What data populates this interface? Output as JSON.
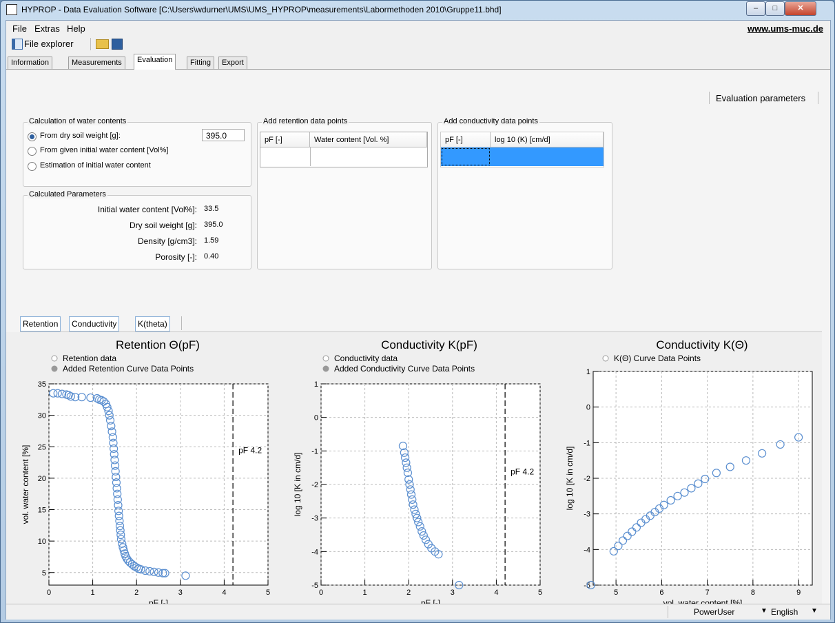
{
  "window": {
    "title": "HYPROP - Data Evaluation Software [C:\\Users\\wdurner\\UMS\\UMS_HYPROP\\measurements\\Labormethoden 2010\\Gruppe11.bhd]"
  },
  "menu": {
    "items": [
      "File",
      "Extras",
      "Help"
    ],
    "website": "www.ums-muc.de"
  },
  "toolbar": {
    "file_explorer": "File explorer"
  },
  "tabs": [
    "Information",
    "Measurements",
    "Evaluation",
    "Fitting",
    "Export"
  ],
  "active_tab": "Evaluation",
  "evaluation_parameters_label": "Evaluation  parameters",
  "water_contents": {
    "title": "Calculation of water contents",
    "options": [
      "From dry soil weight [g]:",
      "From given initial water content [Vol%]",
      "Estimation of initial water content"
    ],
    "selected": "From dry soil weight [g]:",
    "dry_weight_value": "395.0"
  },
  "calculated": {
    "title": "Calculated Parameters",
    "rows": [
      {
        "label": "Initial water content [Vol%]:",
        "value": "33.5"
      },
      {
        "label": "Dry soil weight [g]:",
        "value": "395.0"
      },
      {
        "label": "Density [g/cm3]:",
        "value": "1.59"
      },
      {
        "label": "Porosity [-]:",
        "value": "0.40"
      }
    ]
  },
  "retention_points": {
    "title": "Add retention data points",
    "col1": "pF [-]",
    "col2": "Water content [Vol. %]"
  },
  "conductivity_points": {
    "title": "Add conductivity data points",
    "col1": "pF [-]",
    "col2": "log 10 (K) [cm/d]"
  },
  "subtabs": [
    "Retention",
    "Conductivity",
    "K(theta)"
  ],
  "status": {
    "user": "PowerUser",
    "language": "English"
  },
  "colors": {
    "marker": "#5b8fd0",
    "selected_row": "#3399ff"
  },
  "chart_data": [
    {
      "type": "scatter",
      "title": "Retention Θ(pF)",
      "xlabel": "pF [-]",
      "ylabel": "vol. water content [%]",
      "xlim": [
        0,
        5
      ],
      "ylim": [
        3,
        35
      ],
      "xticks": [
        0,
        1,
        2,
        3,
        4,
        5
      ],
      "yticks": [
        5,
        10,
        15,
        20,
        25,
        30,
        35
      ],
      "legend": [
        "Retention data",
        "Added Retention Curve Data Points"
      ],
      "vline": {
        "x": 4.2,
        "label": "pF 4.2"
      },
      "series": [
        {
          "name": "Retention data",
          "x": [
            0.1,
            0.2,
            0.3,
            0.4,
            0.45,
            0.5,
            0.6,
            0.75,
            0.95,
            1.1,
            1.15,
            1.2,
            1.25,
            1.3,
            1.33,
            1.36,
            1.38,
            1.4,
            1.42,
            1.44,
            1.46,
            1.47,
            1.48,
            1.49,
            1.5,
            1.51,
            1.52,
            1.53,
            1.54,
            1.55,
            1.56,
            1.57,
            1.58,
            1.59,
            1.6,
            1.61,
            1.62,
            1.63,
            1.64,
            1.65,
            1.67,
            1.69,
            1.71,
            1.73,
            1.75,
            1.78,
            1.81,
            1.85,
            1.9,
            1.95,
            2.0,
            2.05,
            2.1,
            2.2,
            2.3,
            2.4,
            2.5,
            2.6,
            2.65,
            3.12
          ],
          "y": [
            33.5,
            33.5,
            33.4,
            33.3,
            33.2,
            33.0,
            32.9,
            32.9,
            32.8,
            32.7,
            32.5,
            32.4,
            32.2,
            31.8,
            31.3,
            30.7,
            30.0,
            29.2,
            28.3,
            27.4,
            26.5,
            25.6,
            24.7,
            23.8,
            22.9,
            22.0,
            21.1,
            20.2,
            19.3,
            18.4,
            17.5,
            16.6,
            15.7,
            14.8,
            14.0,
            13.2,
            12.4,
            11.7,
            11.0,
            10.3,
            9.6,
            9.0,
            8.5,
            8.0,
            7.6,
            7.2,
            6.9,
            6.6,
            6.3,
            6.0,
            5.8,
            5.6,
            5.5,
            5.3,
            5.2,
            5.1,
            5.0,
            4.9,
            4.9,
            4.5
          ]
        }
      ]
    },
    {
      "type": "scatter",
      "title": "Conductivity K(pF)",
      "xlabel": "pF [-]",
      "ylabel": "log 10 [K in cm/d]",
      "xlim": [
        0,
        5
      ],
      "ylim": [
        -5,
        1
      ],
      "xticks": [
        0,
        1,
        2,
        3,
        4,
        5
      ],
      "yticks": [
        -5,
        -4,
        -3,
        -2,
        -1,
        0,
        1
      ],
      "legend": [
        "Conductivity data",
        "Added Conductivity Curve Data Points"
      ],
      "vline": {
        "x": 4.2,
        "label": "pF 4.2"
      },
      "series": [
        {
          "name": "Conductivity data",
          "x": [
            1.87,
            1.9,
            1.92,
            1.94,
            1.96,
            1.98,
            2.0,
            2.02,
            2.04,
            2.06,
            2.08,
            2.1,
            2.13,
            2.16,
            2.19,
            2.22,
            2.26,
            2.3,
            2.34,
            2.39,
            2.45,
            2.52,
            2.6,
            2.68,
            3.15
          ],
          "y": [
            -0.85,
            -1.05,
            -1.2,
            -1.35,
            -1.5,
            -1.65,
            -1.85,
            -2.0,
            -2.15,
            -2.3,
            -2.45,
            -2.6,
            -2.75,
            -2.88,
            -3.0,
            -3.12,
            -3.25,
            -3.4,
            -3.52,
            -3.65,
            -3.78,
            -3.9,
            -4.0,
            -4.08,
            -5.0
          ]
        }
      ]
    },
    {
      "type": "scatter",
      "title": "Conductivity K(Θ)",
      "xlabel": "vol. water content [%]",
      "ylabel": "log 10 [K in cm/d]",
      "xlim": [
        4.5,
        9.3
      ],
      "ylim": [
        -5,
        1
      ],
      "xticks": [
        5,
        6,
        7,
        8,
        9
      ],
      "yticks": [
        -5,
        -4,
        -3,
        -2,
        -1,
        0,
        1
      ],
      "legend": [
        "K(Θ) Curve Data Points"
      ],
      "series": [
        {
          "name": "K(Θ) Curve Data Points",
          "x": [
            4.45,
            4.95,
            5.05,
            5.15,
            5.25,
            5.35,
            5.45,
            5.55,
            5.65,
            5.75,
            5.85,
            5.95,
            6.05,
            6.2,
            6.35,
            6.5,
            6.65,
            6.8,
            6.95,
            7.2,
            7.5,
            7.85,
            8.2,
            8.6,
            9.0
          ],
          "y": [
            -5.0,
            -4.05,
            -3.9,
            -3.75,
            -3.62,
            -3.5,
            -3.38,
            -3.25,
            -3.15,
            -3.05,
            -2.95,
            -2.85,
            -2.75,
            -2.62,
            -2.5,
            -2.4,
            -2.28,
            -2.15,
            -2.02,
            -1.85,
            -1.68,
            -1.5,
            -1.3,
            -1.05,
            -0.85
          ]
        }
      ]
    }
  ]
}
